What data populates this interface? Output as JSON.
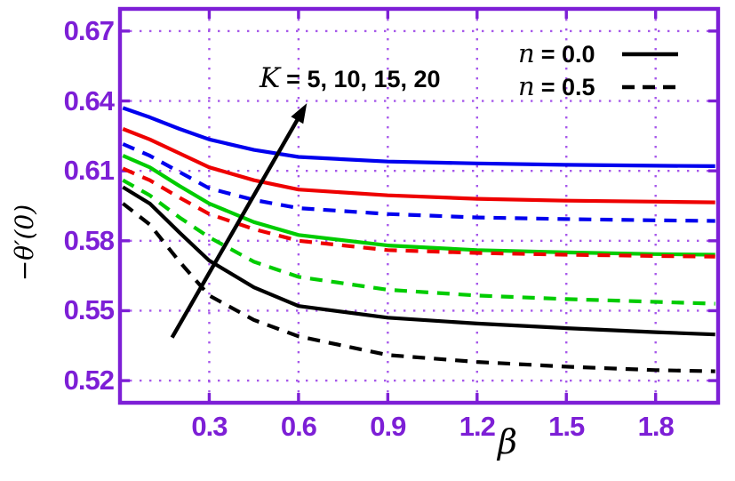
{
  "figure": {
    "background": "#FFFFFF",
    "frame_color": "#7D1FD6",
    "grid_color": "#9C45E8",
    "tick_label_color": "#7D1FD6"
  },
  "chart_data": {
    "type": "line",
    "title": "",
    "xlabel": "β",
    "ylabel": "−θ′(0)",
    "xlim": [
      0,
      2.01
    ],
    "ylim": [
      0.5105,
      0.6795
    ],
    "grid": "dotted",
    "xticks": [
      0.3,
      0.6,
      0.9,
      1.2,
      1.5,
      1.8
    ],
    "xtick_labels": [
      "0.3",
      "0.6",
      "0.9",
      "1.2",
      "1.5",
      "1.8"
    ],
    "yticks": [
      0.52,
      0.55,
      0.58,
      0.61,
      0.64,
      0.67
    ],
    "ytick_labels": [
      "0.52",
      "0.55",
      "0.58",
      "0.61",
      "0.64",
      "0.67"
    ],
    "x": [
      0.01,
      0.1,
      0.2,
      0.3,
      0.45,
      0.6,
      0.9,
      1.2,
      1.5,
      1.8,
      2.0
    ],
    "series": [
      {
        "id": "n0-k20",
        "label": "K=20, n=0.0",
        "K": 20,
        "n": 0.0,
        "color": "#0000EE",
        "style": "solid",
        "values": [
          0.637,
          0.633,
          0.628,
          0.6235,
          0.619,
          0.616,
          0.614,
          0.6132,
          0.6126,
          0.6122,
          0.612
        ]
      },
      {
        "id": "n0-k15",
        "label": "K=15, n=0.0",
        "K": 15,
        "n": 0.0,
        "color": "#EE0000",
        "style": "solid",
        "values": [
          0.628,
          0.6235,
          0.6175,
          0.6115,
          0.606,
          0.602,
          0.5995,
          0.598,
          0.5972,
          0.5968,
          0.5965
        ]
      },
      {
        "id": "n05-k20",
        "label": "K=20, n=0.5",
        "K": 20,
        "n": 0.5,
        "color": "#0000EE",
        "style": "dashed",
        "values": [
          0.6215,
          0.6165,
          0.6095,
          0.6025,
          0.5975,
          0.594,
          0.5915,
          0.59,
          0.5893,
          0.5888,
          0.5885
        ]
      },
      {
        "id": "n0-k10",
        "label": "K=10, n=0.0",
        "K": 10,
        "n": 0.0,
        "color": "#00CC00",
        "style": "solid",
        "values": [
          0.6165,
          0.6115,
          0.6035,
          0.596,
          0.588,
          0.5825,
          0.578,
          0.576,
          0.575,
          0.5743,
          0.574
        ]
      },
      {
        "id": "n05-k15",
        "label": "K=15, n=0.5",
        "K": 15,
        "n": 0.5,
        "color": "#EE0000",
        "style": "dashed",
        "values": [
          0.611,
          0.606,
          0.5985,
          0.5915,
          0.585,
          0.58,
          0.576,
          0.5748,
          0.574,
          0.5735,
          0.5732
        ]
      },
      {
        "id": "n05-k10",
        "label": "K=10, n=0.5",
        "K": 10,
        "n": 0.5,
        "color": "#00CC00",
        "style": "dashed",
        "values": [
          0.606,
          0.5995,
          0.59,
          0.5815,
          0.571,
          0.5645,
          0.559,
          0.5565,
          0.555,
          0.5538,
          0.553
        ]
      },
      {
        "id": "n0-k5",
        "label": "K=5, n=0.0",
        "K": 5,
        "n": 0.0,
        "color": "#000000",
        "style": "solid",
        "values": [
          0.603,
          0.596,
          0.5835,
          0.5715,
          0.56,
          0.552,
          0.547,
          0.5445,
          0.5425,
          0.5408,
          0.5398
        ]
      },
      {
        "id": "n05-k5",
        "label": "K=5, n=0.5",
        "K": 5,
        "n": 0.5,
        "color": "#000000",
        "style": "dashed",
        "values": [
          0.596,
          0.587,
          0.571,
          0.5565,
          0.546,
          0.539,
          0.531,
          0.528,
          0.526,
          0.5245,
          0.524
        ]
      }
    ],
    "legend": {
      "position": "top-right",
      "items": [
        {
          "var": "n",
          "label": "= 0.0",
          "style": "solid",
          "color": "#000000"
        },
        {
          "var": "n",
          "label": "= 0.5",
          "style": "dashed",
          "color": "#000000"
        }
      ]
    },
    "annotation": {
      "var": "K",
      "label": "= 5, 10, 15, 20",
      "arrow": {
        "x1": 0.175,
        "y1": 0.5385,
        "x2": 0.628,
        "y2": 0.639,
        "color": "#000000"
      }
    }
  }
}
